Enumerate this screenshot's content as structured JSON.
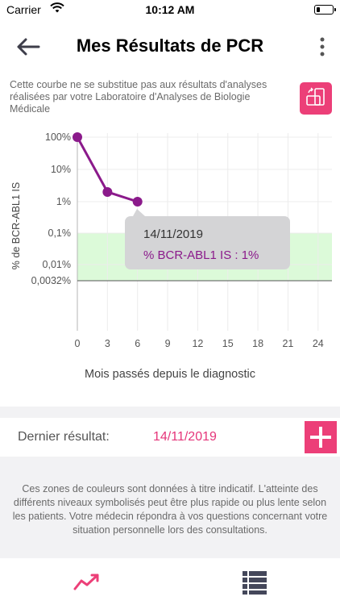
{
  "status_bar": {
    "carrier": "Carrier",
    "time": "10:12 AM"
  },
  "header": {
    "title": "Mes Résultats de PCR"
  },
  "disclaimer": "Cette courbe ne se substitue pas aux résultats d'analyses réalisées par votre Laboratoire d'Analyses de Biologie Médicale",
  "chart_data": {
    "type": "line",
    "ylabel": "% de BCR-ABL1 IS",
    "xlabel": "Mois passés depuis le diagnostic",
    "y_scale": "log",
    "y_ticks": [
      {
        "value": 100,
        "label": "100%"
      },
      {
        "value": 10,
        "label": "10%"
      },
      {
        "value": 1,
        "label": "1%"
      },
      {
        "value": 0.1,
        "label": "0,1%"
      },
      {
        "value": 0.01,
        "label": "0,01%"
      },
      {
        "value": 0.0032,
        "label": "0,0032%"
      }
    ],
    "x_ticks": [
      "0",
      "3",
      "6",
      "9",
      "12",
      "15",
      "18",
      "21",
      "24"
    ],
    "xlim": [
      0,
      24
    ],
    "target_zone": {
      "from": 0.0032,
      "to": 0.1,
      "color": "#dcfad9"
    },
    "series": [
      {
        "color": "#8b1a8b",
        "points": [
          {
            "x": 0,
            "y": 100
          },
          {
            "x": 3,
            "y": 2
          },
          {
            "x": 6,
            "y": 1
          }
        ]
      }
    ],
    "tooltip": {
      "date": "14/11/2019",
      "value_text": "% BCR-ABL1 IS : 1%"
    }
  },
  "last_result": {
    "label": "Dernier résultat:",
    "date": "14/11/2019"
  },
  "info_text": "Ces zones de couleurs sont données à titre indicatif. L'atteinte des différents niveaux symbolisés peut être plus rapide ou plus lente selon les patients. Votre médecin répondra à vos questions concernant votre situation personnelle lors des consultations.",
  "colors": {
    "accent": "#ec3f78",
    "line": "#8b1a8b",
    "zone": "#dcfad9"
  },
  "icons": [
    "wifi-icon",
    "battery-icon",
    "back-arrow-icon",
    "more-vertical-icon",
    "rotate-device-icon",
    "plus-icon",
    "chart-line-icon",
    "list-icon"
  ]
}
